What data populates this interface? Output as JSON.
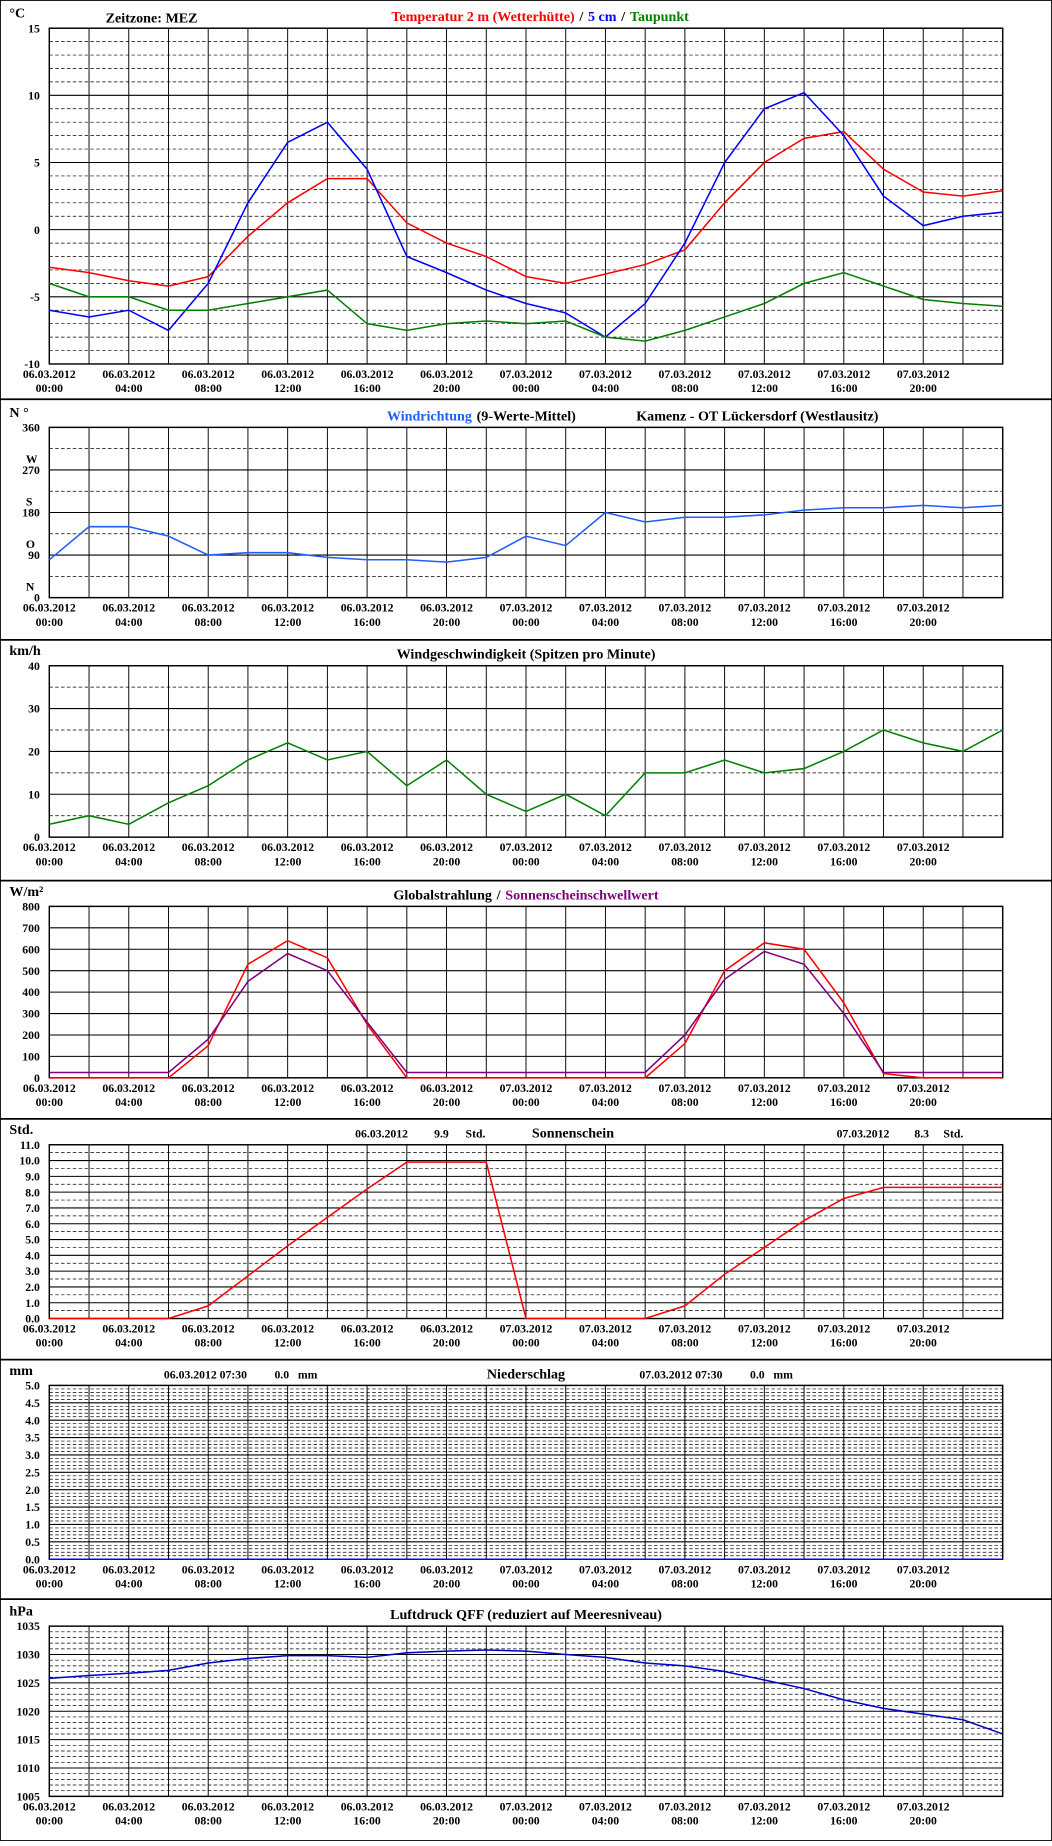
{
  "chart_data": [
    {
      "type": "line",
      "note": "Zeitzone: MEZ",
      "ylabel": "°C",
      "separator": "/",
      "x": [
        "06.03.2012 00:00",
        "06.03.2012 02:00",
        "06.03.2012 04:00",
        "06.03.2012 06:00",
        "06.03.2012 08:00",
        "06.03.2012 10:00",
        "06.03.2012 12:00",
        "06.03.2012 14:00",
        "06.03.2012 16:00",
        "06.03.2012 18:00",
        "06.03.2012 20:00",
        "06.03.2012 22:00",
        "07.03.2012 00:00",
        "07.03.2012 02:00",
        "07.03.2012 04:00",
        "07.03.2012 06:00",
        "07.03.2012 08:00",
        "07.03.2012 10:00",
        "07.03.2012 12:00",
        "07.03.2012 14:00",
        "07.03.2012 16:00",
        "07.03.2012 18:00",
        "07.03.2012 20:00",
        "07.03.2012 22:00",
        "07.03.2012 24:00"
      ],
      "xlim": [
        "06.03.2012 00:00",
        "07.03.2012 24:00"
      ],
      "xticks": [
        "06.03.2012 00:00",
        "06.03.2012 04:00",
        "06.03.2012 08:00",
        "06.03.2012 12:00",
        "06.03.2012 16:00",
        "06.03.2012 20:00",
        "07.03.2012 00:00",
        "07.03.2012 04:00",
        "07.03.2012 08:00",
        "07.03.2012 12:00",
        "07.03.2012 16:00",
        "07.03.2012 20:00"
      ],
      "ylim": [
        -10,
        15
      ],
      "yticks": [
        -10,
        -5,
        0,
        5,
        10,
        15
      ],
      "series": [
        {
          "name": "Temperatur 2 m (Wetterhütte)",
          "color": "#ff0000",
          "values": [
            -2.8,
            -3.2,
            -3.8,
            -4.2,
            -3.5,
            -0.5,
            2,
            3.8,
            3.8,
            0.5,
            -1,
            -2,
            -3.5,
            -4,
            -3.3,
            -2.6,
            -1.5,
            2,
            5,
            6.8,
            7.3,
            4.5,
            2.8,
            2.5,
            2.9
          ]
        },
        {
          "name": "5 cm",
          "color": "#0000ff",
          "values": [
            -6,
            -6.5,
            -6,
            -7.5,
            -4,
            2,
            6.5,
            8,
            4.5,
            -2,
            -3.2,
            -4.5,
            -5.5,
            -6.2,
            -8,
            -5.5,
            -1,
            5,
            9,
            10.2,
            7,
            2.5,
            0.3,
            1,
            1.3
          ]
        },
        {
          "name": "Taupunkt",
          "color": "#008000",
          "values": [
            -4,
            -5,
            -5,
            -6,
            -6,
            -5.5,
            -5,
            -4.5,
            -7,
            -7.5,
            -7,
            -6.8,
            -7,
            -6.8,
            -8,
            -8.3,
            -7.5,
            -6.5,
            -5.5,
            -4,
            -3.2,
            -4.2,
            -5.2,
            -5.5,
            -5.7
          ]
        }
      ]
    },
    {
      "type": "line",
      "ylabel": "N °",
      "subtitle": "(9-Werte-Mittel)",
      "location": "Kamenz - OT Lückersdorf (Westlausitz)",
      "direction_labels": [
        {
          "value": 0,
          "label": "N"
        },
        {
          "value": 90,
          "label": "O"
        },
        {
          "value": 180,
          "label": "S"
        },
        {
          "value": 270,
          "label": "W"
        }
      ],
      "x": [
        "06.03.2012 00:00",
        "06.03.2012 02:00",
        "06.03.2012 04:00",
        "06.03.2012 06:00",
        "06.03.2012 08:00",
        "06.03.2012 10:00",
        "06.03.2012 12:00",
        "06.03.2012 14:00",
        "06.03.2012 16:00",
        "06.03.2012 18:00",
        "06.03.2012 20:00",
        "06.03.2012 22:00",
        "07.03.2012 00:00",
        "07.03.2012 02:00",
        "07.03.2012 04:00",
        "07.03.2012 06:00",
        "07.03.2012 08:00",
        "07.03.2012 10:00",
        "07.03.2012 12:00",
        "07.03.2012 14:00",
        "07.03.2012 16:00",
        "07.03.2012 18:00",
        "07.03.2012 20:00",
        "07.03.2012 22:00",
        "07.03.2012 24:00"
      ],
      "xlim": [
        "06.03.2012 00:00",
        "07.03.2012 24:00"
      ],
      "xticks": [
        "06.03.2012 00:00",
        "06.03.2012 04:00",
        "06.03.2012 08:00",
        "06.03.2012 12:00",
        "06.03.2012 16:00",
        "06.03.2012 20:00",
        "07.03.2012 00:00",
        "07.03.2012 04:00",
        "07.03.2012 08:00",
        "07.03.2012 12:00",
        "07.03.2012 16:00",
        "07.03.2012 20:00"
      ],
      "ylim": [
        0,
        360
      ],
      "yticks": [
        0,
        90,
        180,
        270,
        360
      ],
      "series": [
        {
          "name": "Windrichtung",
          "color": "#1e5eff",
          "values": [
            80,
            150,
            150,
            130,
            90,
            95,
            95,
            85,
            80,
            80,
            75,
            85,
            130,
            110,
            180,
            160,
            170,
            170,
            175,
            185,
            190,
            190,
            195,
            190,
            195
          ]
        }
      ]
    },
    {
      "type": "line",
      "ylabel": "km/h",
      "title": "Windgeschwindigkeit (Spitzen pro Minute)",
      "x": [
        "06.03.2012 00:00",
        "06.03.2012 02:00",
        "06.03.2012 04:00",
        "06.03.2012 06:00",
        "06.03.2012 08:00",
        "06.03.2012 10:00",
        "06.03.2012 12:00",
        "06.03.2012 14:00",
        "06.03.2012 16:00",
        "06.03.2012 18:00",
        "06.03.2012 20:00",
        "06.03.2012 22:00",
        "07.03.2012 00:00",
        "07.03.2012 02:00",
        "07.03.2012 04:00",
        "07.03.2012 06:00",
        "07.03.2012 08:00",
        "07.03.2012 10:00",
        "07.03.2012 12:00",
        "07.03.2012 14:00",
        "07.03.2012 16:00",
        "07.03.2012 18:00",
        "07.03.2012 20:00",
        "07.03.2012 22:00",
        "07.03.2012 24:00"
      ],
      "xlim": [
        "06.03.2012 00:00",
        "07.03.2012 24:00"
      ],
      "xticks": [
        "06.03.2012 00:00",
        "06.03.2012 04:00",
        "06.03.2012 08:00",
        "06.03.2012 12:00",
        "06.03.2012 16:00",
        "06.03.2012 20:00",
        "07.03.2012 00:00",
        "07.03.2012 04:00",
        "07.03.2012 08:00",
        "07.03.2012 12:00",
        "07.03.2012 16:00",
        "07.03.2012 20:00"
      ],
      "ylim": [
        0,
        40
      ],
      "yticks": [
        0,
        10,
        20,
        30,
        40
      ],
      "series": [
        {
          "color": "#008000",
          "values": [
            3,
            5,
            3,
            8,
            12,
            18,
            22,
            18,
            20,
            12,
            18,
            10,
            6,
            10,
            5,
            15,
            15,
            18,
            15,
            16,
            20,
            25,
            22,
            20,
            25
          ]
        }
      ]
    },
    {
      "type": "line",
      "ylabel": "W/m²",
      "separator": "/",
      "x": [
        "06.03.2012 00:00",
        "06.03.2012 02:00",
        "06.03.2012 04:00",
        "06.03.2012 06:00",
        "06.03.2012 08:00",
        "06.03.2012 10:00",
        "06.03.2012 12:00",
        "06.03.2012 14:00",
        "06.03.2012 16:00",
        "06.03.2012 18:00",
        "06.03.2012 20:00",
        "06.03.2012 22:00",
        "07.03.2012 00:00",
        "07.03.2012 02:00",
        "07.03.2012 04:00",
        "07.03.2012 06:00",
        "07.03.2012 08:00",
        "07.03.2012 10:00",
        "07.03.2012 12:00",
        "07.03.2012 14:00",
        "07.03.2012 16:00",
        "07.03.2012 18:00",
        "07.03.2012 20:00",
        "07.03.2012 22:00",
        "07.03.2012 24:00"
      ],
      "xlim": [
        "06.03.2012 00:00",
        "07.03.2012 24:00"
      ],
      "xticks": [
        "06.03.2012 00:00",
        "06.03.2012 04:00",
        "06.03.2012 08:00",
        "06.03.2012 12:00",
        "06.03.2012 16:00",
        "06.03.2012 20:00",
        "07.03.2012 00:00",
        "07.03.2012 04:00",
        "07.03.2012 08:00",
        "07.03.2012 12:00",
        "07.03.2012 16:00",
        "07.03.2012 20:00"
      ],
      "ylim": [
        0,
        800
      ],
      "yticks": [
        0,
        100,
        200,
        300,
        400,
        500,
        600,
        700,
        800
      ],
      "series": [
        {
          "name": "Globalstrahlung",
          "color": "#ff0000",
          "legend_color": "#000000",
          "values": [
            0,
            0,
            0,
            0,
            150,
            530,
            640,
            560,
            250,
            0,
            0,
            0,
            0,
            0,
            0,
            0,
            160,
            500,
            630,
            600,
            350,
            20,
            0,
            0,
            0
          ]
        },
        {
          "name": "Sonnenscheinschwellwert",
          "color": "#800080",
          "values": [
            25,
            25,
            25,
            25,
            180,
            450,
            580,
            500,
            260,
            25,
            25,
            25,
            25,
            25,
            25,
            25,
            200,
            460,
            590,
            530,
            300,
            25,
            25,
            25,
            25
          ]
        }
      ]
    },
    {
      "type": "line",
      "ylabel": "Std.",
      "title": "Sonnenschein",
      "annotations": [
        {
          "date": "06.03.2012",
          "total": "9.9",
          "unit": "Std."
        },
        {
          "date": "07.03.2012",
          "total": "8.3",
          "unit": "Std."
        }
      ],
      "x": [
        "06.03.2012 00:00",
        "06.03.2012 02:00",
        "06.03.2012 04:00",
        "06.03.2012 06:00",
        "06.03.2012 08:00",
        "06.03.2012 10:00",
        "06.03.2012 12:00",
        "06.03.2012 14:00",
        "06.03.2012 16:00",
        "06.03.2012 18:00",
        "06.03.2012 20:00",
        "06.03.2012 22:00",
        "07.03.2012 00:00",
        "07.03.2012 02:00",
        "07.03.2012 04:00",
        "07.03.2012 06:00",
        "07.03.2012 08:00",
        "07.03.2012 10:00",
        "07.03.2012 12:00",
        "07.03.2012 14:00",
        "07.03.2012 16:00",
        "07.03.2012 18:00",
        "07.03.2012 20:00",
        "07.03.2012 22:00",
        "07.03.2012 24:00"
      ],
      "xlim": [
        "06.03.2012 00:00",
        "07.03.2012 24:00"
      ],
      "xticks": [
        "06.03.2012 00:00",
        "06.03.2012 04:00",
        "06.03.2012 08:00",
        "06.03.2012 12:00",
        "06.03.2012 16:00",
        "06.03.2012 20:00",
        "07.03.2012 00:00",
        "07.03.2012 04:00",
        "07.03.2012 08:00",
        "07.03.2012 12:00",
        "07.03.2012 16:00",
        "07.03.2012 20:00"
      ],
      "ylim": [
        0,
        11
      ],
      "yticks": [
        {
          "value": 0,
          "label": "0.0"
        },
        {
          "value": 1,
          "label": "1.0"
        },
        {
          "value": 2,
          "label": "2.0"
        },
        {
          "value": 3,
          "label": "3.0"
        },
        {
          "value": 4,
          "label": "4.0"
        },
        {
          "value": 5,
          "label": "5.0"
        },
        {
          "value": 6,
          "label": "6.0"
        },
        {
          "value": 7,
          "label": "7.0"
        },
        {
          "value": 8,
          "label": "8.0"
        },
        {
          "value": 9,
          "label": "9.0"
        },
        {
          "value": 10,
          "label": "10.0"
        },
        {
          "value": 11,
          "label": "11.0"
        }
      ],
      "series": [
        {
          "color": "#ff0000",
          "values": [
            0,
            0,
            0,
            0,
            0.8,
            2.7,
            4.6,
            6.4,
            8.2,
            9.9,
            9.9,
            9.9,
            0,
            0,
            0,
            0,
            0.8,
            2.8,
            4.5,
            6.2,
            7.6,
            8.3,
            8.3,
            8.3,
            8.3
          ]
        }
      ]
    },
    {
      "type": "line",
      "ylabel": "mm",
      "title": "Niederschlag",
      "annotations": [
        {
          "date": "06.03.2012 07:30",
          "total": "0.0",
          "unit": "mm"
        },
        {
          "date": "07.03.2012 07:30",
          "total": "0.0",
          "unit": "mm"
        }
      ],
      "x": [
        "06.03.2012 00:00",
        "06.03.2012 02:00",
        "06.03.2012 04:00",
        "06.03.2012 06:00",
        "06.03.2012 08:00",
        "06.03.2012 10:00",
        "06.03.2012 12:00",
        "06.03.2012 14:00",
        "06.03.2012 16:00",
        "06.03.2012 18:00",
        "06.03.2012 20:00",
        "06.03.2012 22:00",
        "07.03.2012 00:00",
        "07.03.2012 02:00",
        "07.03.2012 04:00",
        "07.03.2012 06:00",
        "07.03.2012 08:00",
        "07.03.2012 10:00",
        "07.03.2012 12:00",
        "07.03.2012 14:00",
        "07.03.2012 16:00",
        "07.03.2012 18:00",
        "07.03.2012 20:00",
        "07.03.2012 22:00",
        "07.03.2012 24:00"
      ],
      "xlim": [
        "06.03.2012 00:00",
        "07.03.2012 24:00"
      ],
      "xticks": [
        "06.03.2012 00:00",
        "06.03.2012 04:00",
        "06.03.2012 08:00",
        "06.03.2012 12:00",
        "06.03.2012 16:00",
        "06.03.2012 20:00",
        "07.03.2012 00:00",
        "07.03.2012 04:00",
        "07.03.2012 08:00",
        "07.03.2012 12:00",
        "07.03.2012 16:00",
        "07.03.2012 20:00"
      ],
      "ylim": [
        0,
        5
      ],
      "yticks": [
        {
          "value": 0,
          "label": "0.0"
        },
        {
          "value": 0.5,
          "label": "0.5"
        },
        {
          "value": 1,
          "label": "1.0"
        },
        {
          "value": 1.5,
          "label": "1.5"
        },
        {
          "value": 2,
          "label": "2.0"
        },
        {
          "value": 2.5,
          "label": "2.5"
        },
        {
          "value": 3,
          "label": "3.0"
        },
        {
          "value": 3.5,
          "label": "3.5"
        },
        {
          "value": 4,
          "label": "4.0"
        },
        {
          "value": 4.5,
          "label": "4.5"
        },
        {
          "value": 5,
          "label": "5.0"
        }
      ],
      "series": [
        {
          "color": "#0000ff",
          "values": [
            0,
            0,
            0,
            0,
            0,
            0,
            0,
            0,
            0,
            0,
            0,
            0,
            0,
            0,
            0,
            0,
            0,
            0,
            0,
            0,
            0,
            0,
            0,
            0,
            0
          ]
        }
      ]
    },
    {
      "type": "line",
      "ylabel": "hPa",
      "title": "Luftdruck QFF (reduziert auf Meeresniveau)",
      "x": [
        "06.03.2012 00:00",
        "06.03.2012 02:00",
        "06.03.2012 04:00",
        "06.03.2012 06:00",
        "06.03.2012 08:00",
        "06.03.2012 10:00",
        "06.03.2012 12:00",
        "06.03.2012 14:00",
        "06.03.2012 16:00",
        "06.03.2012 18:00",
        "06.03.2012 20:00",
        "06.03.2012 22:00",
        "07.03.2012 00:00",
        "07.03.2012 02:00",
        "07.03.2012 04:00",
        "07.03.2012 06:00",
        "07.03.2012 08:00",
        "07.03.2012 10:00",
        "07.03.2012 12:00",
        "07.03.2012 14:00",
        "07.03.2012 16:00",
        "07.03.2012 18:00",
        "07.03.2012 20:00",
        "07.03.2012 22:00",
        "07.03.2012 24:00"
      ],
      "xlim": [
        "06.03.2012 00:00",
        "07.03.2012 24:00"
      ],
      "xticks": [
        "06.03.2012 00:00",
        "06.03.2012 04:00",
        "06.03.2012 08:00",
        "06.03.2012 12:00",
        "06.03.2012 16:00",
        "06.03.2012 20:00",
        "07.03.2012 00:00",
        "07.03.2012 04:00",
        "07.03.2012 08:00",
        "07.03.2012 12:00",
        "07.03.2012 16:00",
        "07.03.2012 20:00"
      ],
      "ylim": [
        1005,
        1035
      ],
      "yticks": [
        1005,
        1010,
        1015,
        1020,
        1025,
        1030,
        1035
      ],
      "series": [
        {
          "color": "#0000cc",
          "values": [
            1025.8,
            1026.3,
            1026.7,
            1027.2,
            1028.5,
            1029.3,
            1029.8,
            1029.8,
            1029.5,
            1030.3,
            1030.6,
            1030.8,
            1030.6,
            1030.0,
            1029.5,
            1028.5,
            1028.0,
            1027.0,
            1025.5,
            1024.0,
            1022.0,
            1020.5,
            1019.5,
            1018.5,
            1016.0
          ]
        }
      ]
    }
  ]
}
